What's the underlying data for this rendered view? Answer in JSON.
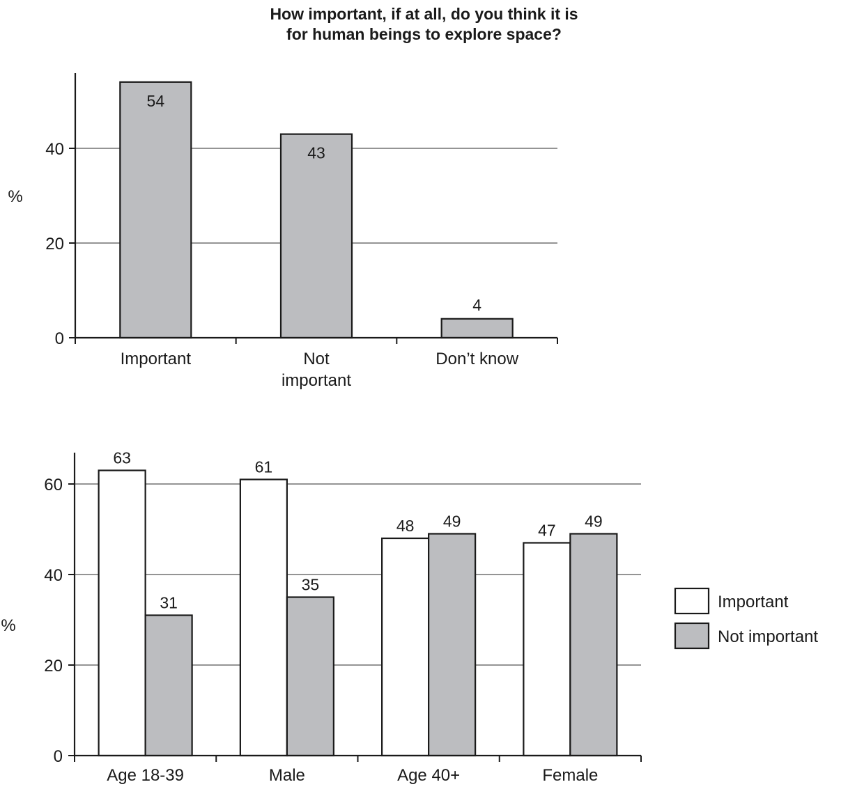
{
  "title_lines": [
    "How important, if at all, do you think it is",
    "for human beings to explore space?"
  ],
  "colors": {
    "important": "#ffffff",
    "not_important": "#bcbdc0",
    "stroke": "#1a1a1a",
    "grid": "#555555"
  },
  "chart_data": [
    {
      "type": "bar",
      "categories": [
        [
          "Important"
        ],
        [
          "Not",
          "important"
        ],
        [
          "Don’t know"
        ]
      ],
      "values": [
        54,
        43,
        4
      ],
      "data_labels": [
        "54",
        "43",
        "4"
      ],
      "ylabel": "%",
      "ylim": [
        0,
        57
      ],
      "yticks": [
        0,
        20,
        40
      ],
      "grid": true,
      "bar_color": "#bcbdc0"
    },
    {
      "type": "bar",
      "categories": [
        [
          "Age 18-39"
        ],
        [
          "Male"
        ],
        [
          "Age 40+"
        ],
        [
          "Female"
        ]
      ],
      "series": [
        {
          "name": "Important",
          "color": "#ffffff",
          "values": [
            63,
            61,
            48,
            47
          ],
          "data_labels": [
            "63",
            "61",
            "48",
            "47"
          ]
        },
        {
          "name": "Not important",
          "color": "#bcbdc0",
          "values": [
            31,
            35,
            49,
            49
          ],
          "data_labels": [
            "31",
            "35",
            "49",
            "49"
          ]
        }
      ],
      "ylabel": "%",
      "ylim": [
        0,
        67
      ],
      "yticks": [
        0,
        20,
        40,
        60
      ],
      "grid": true,
      "legend": "right"
    }
  ]
}
